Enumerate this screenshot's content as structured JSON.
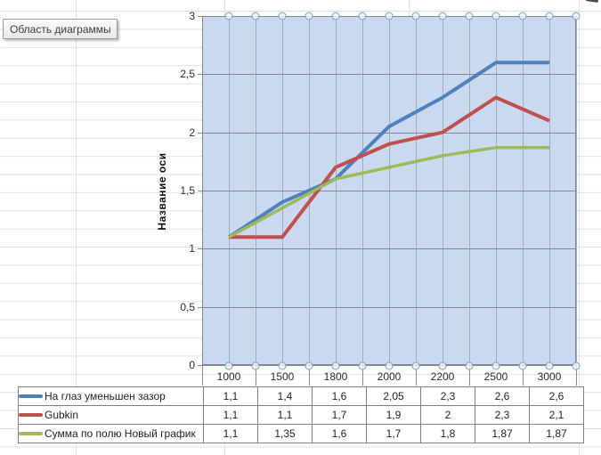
{
  "tooltip": {
    "label": "Область диаграммы"
  },
  "chart_data": {
    "type": "line",
    "title": "",
    "ylabel": "Название оси",
    "xlabel": "",
    "categories": [
      "1000",
      "1500",
      "1800",
      "2000",
      "2200",
      "2500",
      "3000"
    ],
    "ylim": [
      0,
      3
    ],
    "yticks": [
      {
        "label": "0",
        "value": 0
      },
      {
        "label": "0,5",
        "value": 0.5
      },
      {
        "label": "1",
        "value": 1
      },
      {
        "label": "1,5",
        "value": 1.5
      },
      {
        "label": "2",
        "value": 2
      },
      {
        "label": "2,5",
        "value": 2.5
      },
      {
        "label": "3",
        "value": 3
      }
    ],
    "grid": true,
    "legend_position": "bottom-table",
    "plot_bg": "#CAD8F0",
    "series": [
      {
        "name": "На глаз уменьшен зазор",
        "color": "#4F81BD",
        "values": [
          1.1,
          1.4,
          1.6,
          2.05,
          2.3,
          2.6,
          2.6
        ],
        "labels": [
          "1,1",
          "1,4",
          "1,6",
          "2,05",
          "2,3",
          "2,6",
          "2,6"
        ]
      },
      {
        "name": "Gubkin",
        "color": "#C0504D",
        "values": [
          1.1,
          1.1,
          1.7,
          1.9,
          2,
          2.3,
          2.1
        ],
        "labels": [
          "1,1",
          "1,1",
          "1,7",
          "1,9",
          "2",
          "2,3",
          "2,1"
        ]
      },
      {
        "name": "Сумма по полю Новый график",
        "color": "#9BBB59",
        "values": [
          1.1,
          1.35,
          1.6,
          1.7,
          1.8,
          1.87,
          1.87
        ],
        "labels": [
          "1,1",
          "1,35",
          "1,6",
          "1,7",
          "1,8",
          "1,87",
          "1,87"
        ]
      }
    ]
  },
  "colors": {
    "horizontal_grid": "#80878F",
    "vertical_grid": "#A4ABB4",
    "plot_border": "#7F868D",
    "tick": "#84898F",
    "handle_stroke": "#7E9EB9",
    "handle_fill": "#EFF5FB",
    "table_border": "#7F7F7F",
    "sheet_grid": "#DDE2E9"
  }
}
